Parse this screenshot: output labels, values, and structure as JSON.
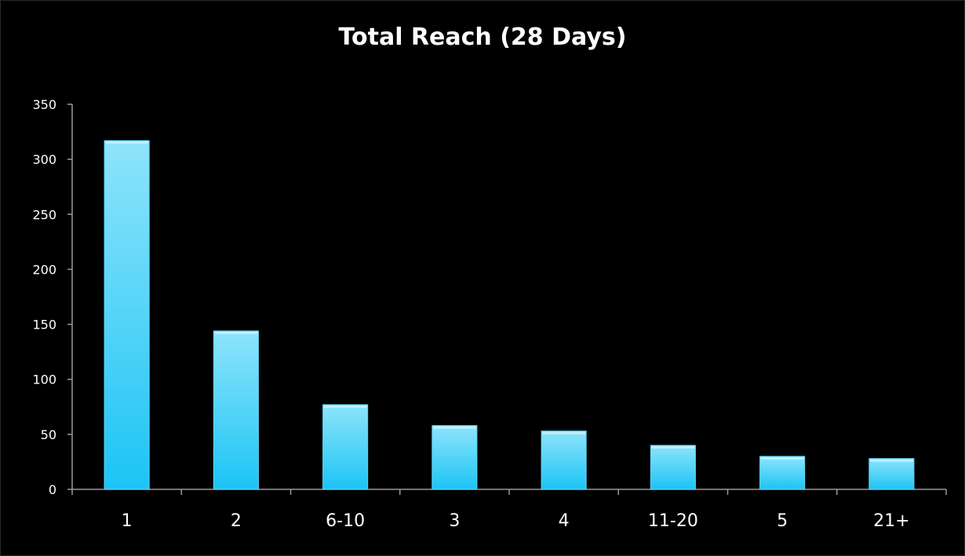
{
  "chart_data": {
    "type": "bar",
    "title": "Total Reach (28 Days)",
    "xlabel": "",
    "ylabel": "",
    "categories": [
      "1",
      "2",
      "6-10",
      "3",
      "4",
      "11-20",
      "5",
      "21+"
    ],
    "values": [
      317,
      144,
      77,
      58,
      53,
      40,
      30,
      28
    ],
    "ylim": [
      0,
      350
    ],
    "yticks": [
      0,
      50,
      100,
      150,
      200,
      250,
      300,
      350
    ],
    "grid": false,
    "legend": "none",
    "colors": {
      "background": "#000000",
      "bar_top": "#8ee4fb",
      "bar_bottom": "#1cc4f5",
      "axis": "#9a9a9a",
      "text": "#ffffff"
    }
  }
}
